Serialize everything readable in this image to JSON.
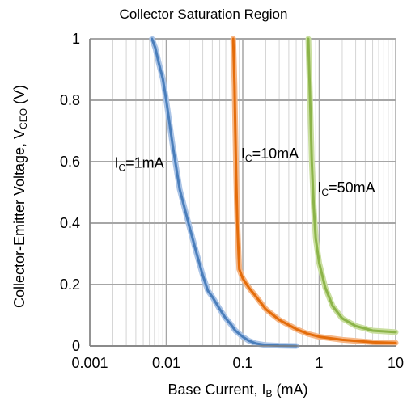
{
  "chart_data": {
    "type": "line",
    "title": "Collector Saturation Region",
    "xlabel": {
      "main": "Base Current, I",
      "sub": "B",
      "unit": " (mA)"
    },
    "ylabel": {
      "main": "Collector-Emitter Voltage, V",
      "sub": "CEO",
      "unit": " (V)"
    },
    "xscale": "log",
    "xlim": [
      0.001,
      10
    ],
    "ylim": [
      0,
      1
    ],
    "x_tick_labels": [
      "0.001",
      "0.01",
      "0.1",
      "1",
      "10"
    ],
    "y_tick_labels": [
      "0",
      "0.2",
      "0.4",
      "0.6",
      "0.8",
      "1"
    ],
    "y_ticks": [
      0,
      0.2,
      0.4,
      0.6,
      0.8,
      1
    ],
    "grid": true,
    "series": [
      {
        "name": "IC=1mA",
        "label_main": "I",
        "label_sub": "C",
        "label_rest": "=1mA",
        "label_at": [
          0.0021,
          0.58
        ],
        "color": "#4a7ebb",
        "halo": "#a9c3e6",
        "x": [
          0.0065,
          0.0072,
          0.008,
          0.009,
          0.01,
          0.012,
          0.015,
          0.02,
          0.025,
          0.03,
          0.035,
          0.04,
          0.05,
          0.06,
          0.07,
          0.08,
          0.1,
          0.12,
          0.15,
          0.2,
          0.3,
          0.5
        ],
        "y": [
          1.0,
          0.97,
          0.92,
          0.87,
          0.8,
          0.66,
          0.51,
          0.39,
          0.3,
          0.23,
          0.18,
          0.16,
          0.12,
          0.09,
          0.07,
          0.05,
          0.03,
          0.017,
          0.008,
          0.003,
          0.001,
          0.0
        ]
      },
      {
        "name": "IC=10mA",
        "label_main": "I",
        "label_sub": "C",
        "label_rest": "=10mA",
        "label_at": [
          0.095,
          0.61
        ],
        "color": "#e46c0a",
        "halo": "#f5b685",
        "x": [
          0.075,
          0.078,
          0.08,
          0.082,
          0.085,
          0.088,
          0.09,
          0.1,
          0.12,
          0.15,
          0.2,
          0.3,
          0.5,
          0.7,
          1.0,
          2.0,
          5.0,
          10.0
        ],
        "y": [
          1.0,
          0.85,
          0.7,
          0.55,
          0.4,
          0.3,
          0.25,
          0.22,
          0.19,
          0.16,
          0.12,
          0.085,
          0.055,
          0.04,
          0.03,
          0.02,
          0.012,
          0.01
        ]
      },
      {
        "name": "IC=50mA",
        "label_main": "I",
        "label_sub": "C",
        "label_rest": "=50mA",
        "label_at": [
          0.95,
          0.5
        ],
        "color": "#8cb449",
        "halo": "#c9de9f",
        "x": [
          0.72,
          0.75,
          0.78,
          0.8,
          0.85,
          0.9,
          1.0,
          1.2,
          1.5,
          2.0,
          3.0,
          5.0,
          10.0
        ],
        "y": [
          1.0,
          0.85,
          0.7,
          0.6,
          0.45,
          0.35,
          0.27,
          0.19,
          0.13,
          0.09,
          0.065,
          0.05,
          0.045
        ]
      }
    ]
  }
}
